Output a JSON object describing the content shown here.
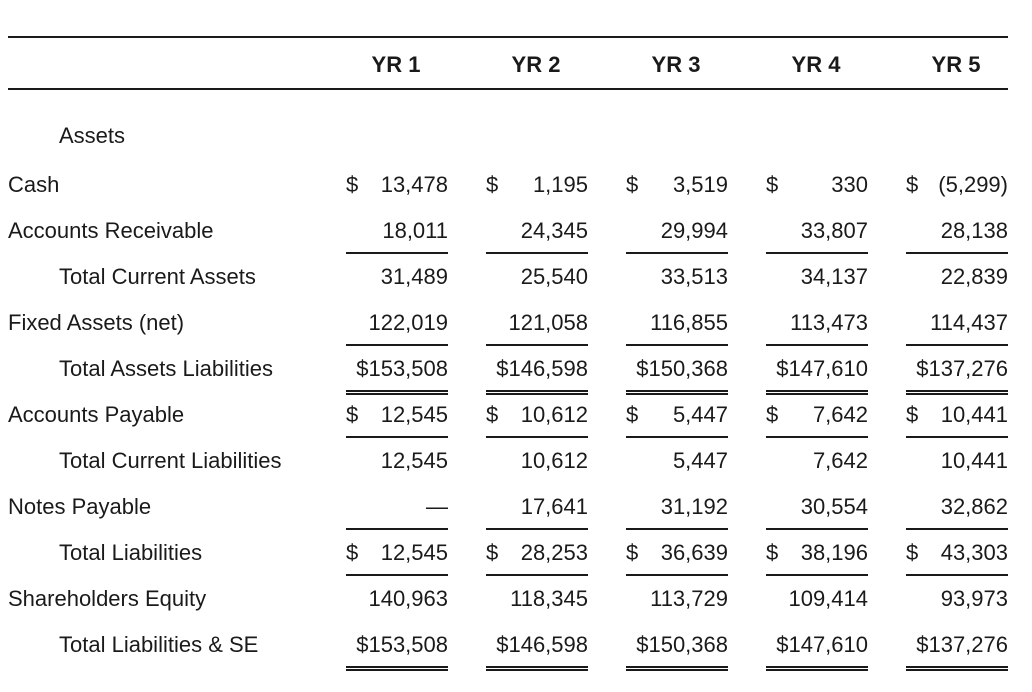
{
  "columns": [
    "YR 1",
    "YR 2",
    "YR 3",
    "YR 4",
    "YR 5"
  ],
  "section": "Assets",
  "rows": [
    {
      "label": "Cash",
      "indent": false,
      "cells": [
        {
          "cur": "$",
          "amt": "13,478"
        },
        {
          "cur": "$",
          "amt": "1,195"
        },
        {
          "cur": "$",
          "amt": "3,519"
        },
        {
          "cur": "$",
          "amt": "330"
        },
        {
          "cur": "$",
          "amt": "(5,299)"
        }
      ],
      "rule": "none"
    },
    {
      "label": "Accounts Receivable",
      "indent": false,
      "cells": [
        {
          "cur": "",
          "amt": "18,011"
        },
        {
          "cur": "",
          "amt": "24,345"
        },
        {
          "cur": "",
          "amt": "29,994"
        },
        {
          "cur": "",
          "amt": "33,807"
        },
        {
          "cur": "",
          "amt": "28,138"
        }
      ],
      "rule": "single"
    },
    {
      "label": "Total Current Assets",
      "indent": true,
      "cells": [
        {
          "cur": "",
          "amt": "31,489"
        },
        {
          "cur": "",
          "amt": "25,540"
        },
        {
          "cur": "",
          "amt": "33,513"
        },
        {
          "cur": "",
          "amt": "34,137"
        },
        {
          "cur": "",
          "amt": "22,839"
        }
      ],
      "rule": "none"
    },
    {
      "label": "Fixed Assets (net)",
      "indent": false,
      "cells": [
        {
          "cur": "",
          "amt": "122,019"
        },
        {
          "cur": "",
          "amt": "121,058"
        },
        {
          "cur": "",
          "amt": "116,855"
        },
        {
          "cur": "",
          "amt": "113,473"
        },
        {
          "cur": "",
          "amt": "114,437"
        }
      ],
      "rule": "single"
    },
    {
      "label": "Total Assets Liabilities",
      "indent": true,
      "cells": [
        {
          "cur": "",
          "amt": "$153,508"
        },
        {
          "cur": "",
          "amt": "$146,598"
        },
        {
          "cur": "",
          "amt": "$150,368"
        },
        {
          "cur": "",
          "amt": "$147,610"
        },
        {
          "cur": "",
          "amt": "$137,276"
        }
      ],
      "rule": "double"
    },
    {
      "label": "Accounts Payable",
      "indent": false,
      "cells": [
        {
          "cur": "$",
          "amt": "12,545"
        },
        {
          "cur": "$",
          "amt": "10,612"
        },
        {
          "cur": "$",
          "amt": "5,447"
        },
        {
          "cur": "$",
          "amt": "7,642"
        },
        {
          "cur": "$",
          "amt": "10,441"
        }
      ],
      "rule": "single"
    },
    {
      "label": "Total Current Liabilities",
      "indent": true,
      "cells": [
        {
          "cur": "",
          "amt": "12,545"
        },
        {
          "cur": "",
          "amt": "10,612"
        },
        {
          "cur": "",
          "amt": "5,447"
        },
        {
          "cur": "",
          "amt": "7,642"
        },
        {
          "cur": "",
          "amt": "10,441"
        }
      ],
      "rule": "none"
    },
    {
      "label": "Notes Payable",
      "indent": false,
      "cells": [
        {
          "cur": "",
          "amt": "—"
        },
        {
          "cur": "",
          "amt": "17,641"
        },
        {
          "cur": "",
          "amt": "31,192"
        },
        {
          "cur": "",
          "amt": "30,554"
        },
        {
          "cur": "",
          "amt": "32,862"
        }
      ],
      "rule": "single"
    },
    {
      "label": "Total Liabilities",
      "indent": true,
      "cells": [
        {
          "cur": "$",
          "amt": "12,545"
        },
        {
          "cur": "$",
          "amt": "28,253"
        },
        {
          "cur": "$",
          "amt": "36,639"
        },
        {
          "cur": "$",
          "amt": "38,196"
        },
        {
          "cur": "$",
          "amt": "43,303"
        }
      ],
      "rule": "single"
    },
    {
      "label": "Shareholders Equity",
      "indent": false,
      "cells": [
        {
          "cur": "",
          "amt": "140,963"
        },
        {
          "cur": "",
          "amt": "118,345"
        },
        {
          "cur": "",
          "amt": "113,729"
        },
        {
          "cur": "",
          "amt": "109,414"
        },
        {
          "cur": "",
          "amt": "93,973"
        }
      ],
      "rule": "none"
    },
    {
      "label": "Total Liabilities & SE",
      "indent": true,
      "cells": [
        {
          "cur": "",
          "amt": "$153,508"
        },
        {
          "cur": "",
          "amt": "$146,598"
        },
        {
          "cur": "",
          "amt": "$150,368"
        },
        {
          "cur": "",
          "amt": "$147,610"
        },
        {
          "cur": "",
          "amt": "$137,276"
        }
      ],
      "rule": "double"
    }
  ]
}
